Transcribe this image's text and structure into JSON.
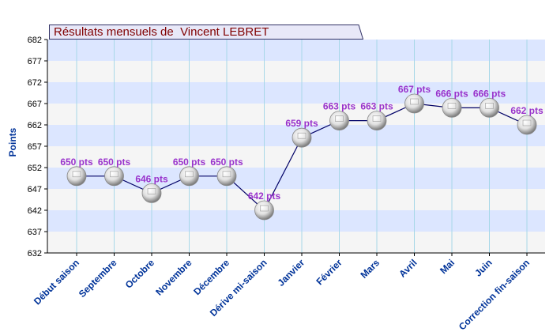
{
  "chart_data": {
    "type": "line",
    "title": "Résultats mensuels de  Vincent LEBRET",
    "ylabel": "Points",
    "xlabel": "",
    "categories": [
      "Début saison",
      "Septembre",
      "Octobre",
      "Novembre",
      "Décembre",
      "Dérive mi-saison",
      "Janvier",
      "Février",
      "Mars",
      "Avril",
      "Mai",
      "Juin",
      "Correction fin-saison"
    ],
    "values": [
      650,
      650,
      646,
      650,
      650,
      642,
      659,
      663,
      663,
      667,
      666,
      666,
      662
    ],
    "data_labels": [
      "650 pts",
      "650 pts",
      "646 pts",
      "650 pts",
      "650 pts",
      "642 pts",
      "659 pts",
      "663 pts",
      "663 pts",
      "667 pts",
      "666 pts",
      "666 pts",
      "662 pts"
    ],
    "ylim": [
      632,
      682
    ],
    "yticks": [
      "682",
      "677",
      "672",
      "667",
      "662",
      "657",
      "652",
      "647",
      "642",
      "637",
      "632"
    ],
    "grid": true,
    "colors": {
      "band_light": "#f5f5f5",
      "band_blue": "#dce6ff",
      "line": "#000066",
      "label": "#9933cc",
      "axis_text": "#003399",
      "title": "#800000",
      "vgrid": "#a8d8e8"
    }
  }
}
